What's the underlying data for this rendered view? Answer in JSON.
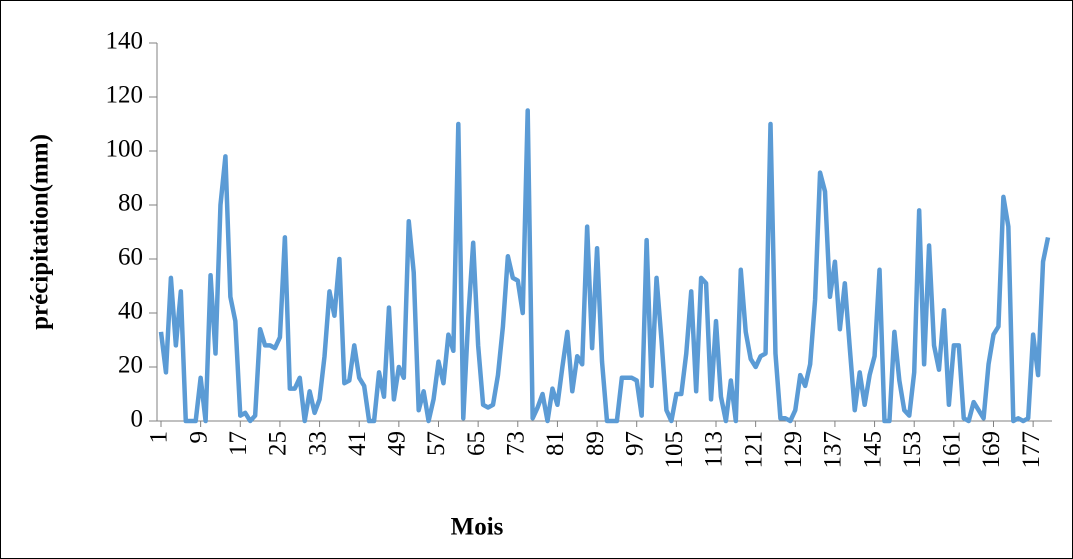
{
  "chart_data": {
    "type": "line",
    "x_label": "Mois",
    "y_label": "précipitation(mm)",
    "categories": [
      "1",
      null,
      null,
      null,
      null,
      null,
      null,
      null,
      "9",
      null,
      null,
      null,
      null,
      null,
      null,
      null,
      "17",
      null,
      null,
      null,
      null,
      null,
      null,
      null,
      "25",
      null,
      null,
      null,
      null,
      null,
      null,
      null,
      "33",
      null,
      null,
      null,
      null,
      null,
      null,
      null,
      "41",
      null,
      null,
      null,
      null,
      null,
      null,
      null,
      "49",
      null,
      null,
      null,
      null,
      null,
      null,
      null,
      "57",
      null,
      null,
      null,
      null,
      null,
      null,
      null,
      "65",
      null,
      null,
      null,
      null,
      null,
      null,
      null,
      "73",
      null,
      null,
      null,
      null,
      null,
      null,
      null,
      "81",
      null,
      null,
      null,
      null,
      null,
      null,
      null,
      "89",
      null,
      null,
      null,
      null,
      null,
      null,
      null,
      "97",
      null,
      null,
      null,
      null,
      null,
      null,
      null,
      "105",
      null,
      null,
      null,
      null,
      null,
      null,
      null,
      "113",
      null,
      null,
      null,
      null,
      null,
      null,
      null,
      "121",
      null,
      null,
      null,
      null,
      null,
      null,
      null,
      "129",
      null,
      null,
      null,
      null,
      null,
      null,
      null,
      "137",
      null,
      null,
      null,
      null,
      null,
      null,
      null,
      "145",
      null,
      null,
      null,
      null,
      null,
      null,
      null,
      "153",
      null,
      null,
      null,
      null,
      null,
      null,
      null,
      "161",
      null,
      null,
      null,
      null,
      null,
      null,
      null,
      "169",
      null,
      null,
      null,
      null,
      null,
      null,
      null,
      "177",
      null,
      null,
      null
    ],
    "series": [
      {
        "color": "#5b9bd5",
        "values": [
          33,
          18,
          53,
          28,
          48,
          0,
          0,
          0,
          16,
          0,
          54,
          25,
          80,
          98,
          46,
          37,
          2,
          3,
          0,
          2,
          34,
          28,
          28,
          27,
          31,
          68,
          12,
          12,
          16,
          0,
          11,
          3,
          8,
          24,
          48,
          39,
          60,
          14,
          15,
          28,
          16,
          13,
          0,
          0,
          18,
          9,
          42,
          8,
          20,
          16,
          74,
          55,
          4,
          11,
          0,
          8,
          22,
          14,
          32,
          26,
          110,
          1,
          38,
          66,
          28,
          6,
          5,
          6,
          17,
          35,
          61,
          53,
          52,
          40,
          115,
          1,
          5,
          10,
          0,
          12,
          6,
          20,
          33,
          11,
          24,
          21,
          72,
          27,
          64,
          22,
          0,
          0,
          0,
          16,
          16,
          16,
          15,
          2,
          67,
          13,
          53,
          30,
          4,
          0,
          10,
          10,
          25,
          48,
          11,
          53,
          51,
          8,
          37,
          9,
          0,
          15,
          0,
          56,
          33,
          23,
          20,
          24,
          25,
          110,
          25,
          1,
          1,
          0,
          4,
          17,
          13,
          21,
          45,
          92,
          85,
          46,
          59,
          34,
          51,
          27,
          4,
          18,
          6,
          17,
          24,
          56,
          0,
          0,
          33,
          15,
          4,
          2,
          18,
          78,
          21,
          65,
          28,
          19,
          41,
          6,
          28,
          28,
          1,
          0,
          7,
          4,
          1,
          21,
          32,
          35,
          83,
          72,
          0,
          1,
          0,
          1,
          32,
          17,
          59,
          68
        ]
      }
    ],
    "ylim": [
      0,
      140
    ],
    "yticks": [
      0,
      20,
      40,
      60,
      80,
      100,
      120,
      140
    ],
    "grid": false
  }
}
